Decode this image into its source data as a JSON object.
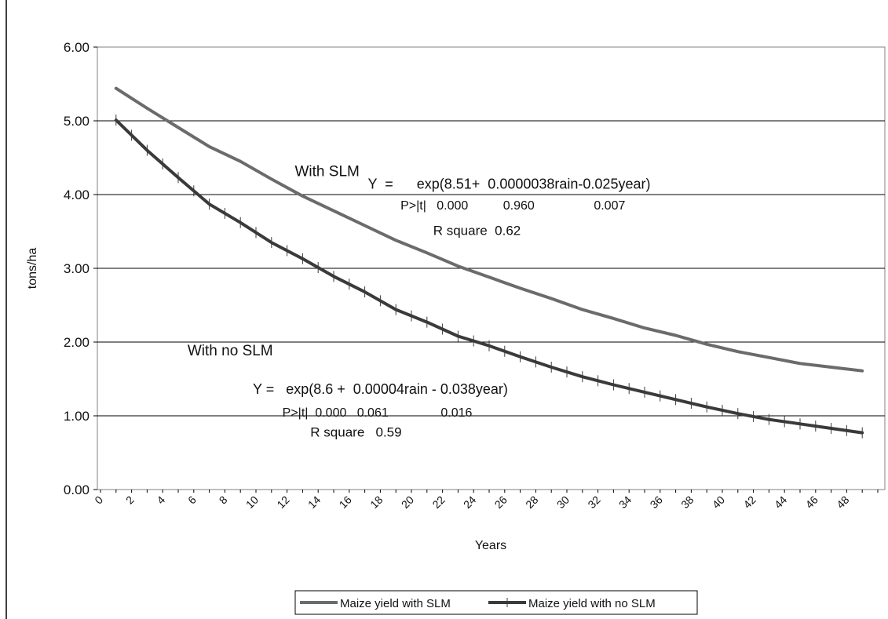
{
  "chart_data": {
    "type": "line",
    "title": "",
    "xlabel": "Years",
    "ylabel": "tons/ha",
    "ylim": [
      0,
      6
    ],
    "xlim": [
      0,
      50
    ],
    "y_ticks": [
      "0.00",
      "1.00",
      "2.00",
      "3.00",
      "4.00",
      "5.00",
      "6.00"
    ],
    "x_ticks": [
      "0",
      "2",
      "4",
      "6",
      "8",
      "10",
      "12",
      "14",
      "16",
      "18",
      "20",
      "22",
      "24",
      "26",
      "28",
      "30",
      "32",
      "34",
      "36",
      "38",
      "40",
      "42",
      "44",
      "46",
      "48"
    ],
    "grid": "horizontal",
    "legend_position": "bottom",
    "series": [
      {
        "name": "Maize yield with SLM",
        "color": "#6b6b6b",
        "marker": "none",
        "x": [
          1,
          3,
          5,
          7,
          9,
          11,
          13,
          15,
          17,
          19,
          21,
          23,
          25,
          27,
          29,
          31,
          33,
          35,
          37,
          39,
          41,
          43,
          45,
          47,
          49
        ],
        "values": [
          5.44,
          5.17,
          4.91,
          4.65,
          4.45,
          4.21,
          3.98,
          3.78,
          3.58,
          3.38,
          3.21,
          3.03,
          2.88,
          2.73,
          2.59,
          2.44,
          2.32,
          2.19,
          2.09,
          1.97,
          1.87,
          1.79,
          1.71,
          1.66,
          1.61
        ]
      },
      {
        "name": "Maize yield with no SLM",
        "color": "#3a3a3a",
        "marker": "plus",
        "x": [
          1,
          3,
          5,
          7,
          9,
          11,
          13,
          15,
          17,
          19,
          21,
          23,
          25,
          27,
          29,
          31,
          33,
          35,
          37,
          39,
          41,
          43,
          45,
          47,
          49
        ],
        "values": [
          5.01,
          4.6,
          4.23,
          3.87,
          3.62,
          3.35,
          3.13,
          2.89,
          2.68,
          2.44,
          2.27,
          2.08,
          1.95,
          1.8,
          1.66,
          1.53,
          1.42,
          1.32,
          1.22,
          1.12,
          1.03,
          0.95,
          0.89,
          0.83,
          0.77
        ]
      }
    ],
    "annotations": [
      {
        "text": "With SLM",
        "x": 12.5,
        "y": 4.25,
        "size": 19
      },
      {
        "text": "Y  =      exp(8.51+  0.0000038rain-0.025year)",
        "x": 17.2,
        "y": 4.08,
        "size": 18
      },
      {
        "text": "P>|t|   0.000          0.960                 0.007",
        "x": 19.3,
        "y": 3.8,
        "size": 16
      },
      {
        "text": "R square  0.62",
        "x": 21.4,
        "y": 3.45,
        "size": 17
      },
      {
        "text": "With no SLM",
        "x": 5.6,
        "y": 1.82,
        "size": 19
      },
      {
        "text": "Y =   exp(8.6 +  0.00004rain - 0.038year)",
        "x": 9.8,
        "y": 1.3,
        "size": 18
      },
      {
        "text": "P>|t|  0.000   0.061               0.016",
        "x": 11.7,
        "y": 0.99,
        "size": 16
      },
      {
        "text": "R square   0.59",
        "x": 13.5,
        "y": 0.72,
        "size": 17
      }
    ]
  }
}
